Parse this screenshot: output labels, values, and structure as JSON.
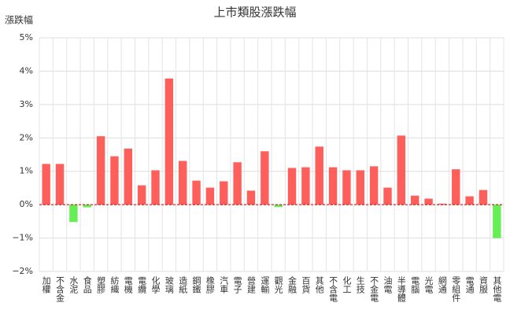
{
  "chart_data": {
    "type": "bar",
    "title": "上市類股漲跌幅",
    "y_label": "漲跌幅",
    "categories": [
      "加權",
      "不含金",
      "水泥",
      "食品",
      "塑膠",
      "紡織",
      "電機",
      "電纜",
      "化學",
      "玻璃",
      "造紙",
      "鋼鐵",
      "橡膠",
      "汽車",
      "電子",
      "營建",
      "運輸",
      "觀光",
      "金融",
      "百貨",
      "其他",
      "不含電",
      "化工",
      "生技",
      "不金電",
      "油電",
      "半導體",
      "電腦",
      "光電",
      "網通",
      "零組件",
      "電通",
      "資服",
      "其他電"
    ],
    "values": [
      1.22,
      1.22,
      -0.52,
      -0.08,
      2.05,
      1.45,
      1.68,
      0.58,
      1.03,
      3.78,
      1.31,
      0.72,
      0.51,
      0.7,
      1.27,
      0.42,
      1.6,
      -0.07,
      1.1,
      1.12,
      1.74,
      1.12,
      1.03,
      1.03,
      1.15,
      0.51,
      2.07,
      0.27,
      0.18,
      0.03,
      1.06,
      0.25,
      0.44,
      -1.0
    ],
    "positive_color": "#ff5f5a",
    "negative_color": "#66ee55",
    "zero_line_color": "#cc0000",
    "ylim": [
      -2,
      5
    ],
    "yticks": [
      {
        "value": -2,
        "label": "−2%"
      },
      {
        "value": -1,
        "label": "−1%"
      },
      {
        "value": 0,
        "label": "0%"
      },
      {
        "value": 1,
        "label": "1%"
      },
      {
        "value": 2,
        "label": "2%"
      },
      {
        "value": 3,
        "label": "3%"
      },
      {
        "value": 4,
        "label": "4%"
      },
      {
        "value": 5,
        "label": "5%"
      }
    ],
    "grid": true
  }
}
